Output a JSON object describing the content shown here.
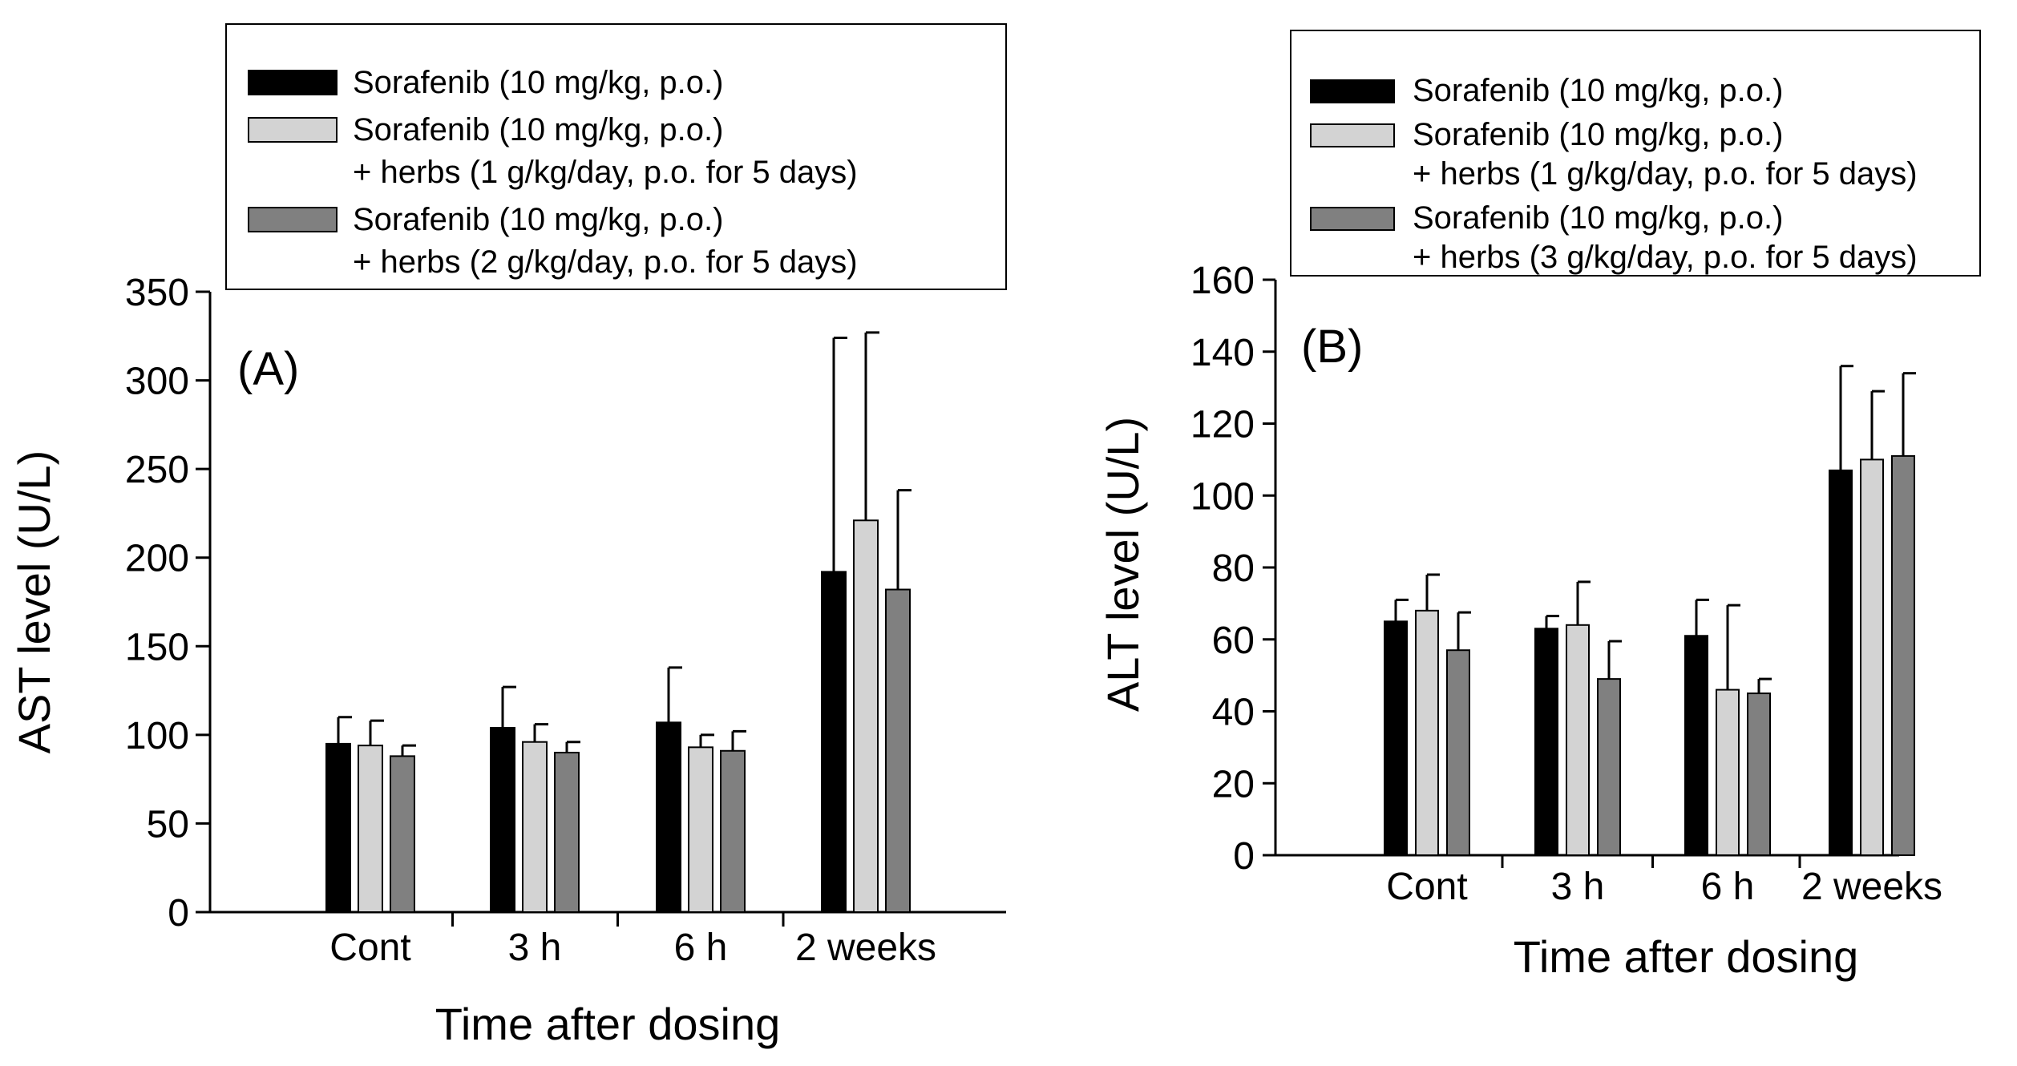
{
  "chart_data": [
    {
      "panel_label": "(A)",
      "type": "bar",
      "xlabel": "Time after dosing",
      "ylabel": "AST level (U/L)",
      "ylim": [
        0,
        350
      ],
      "yticks": [
        0,
        50,
        100,
        150,
        200,
        250,
        300,
        350
      ],
      "categories": [
        "Cont",
        "3 h",
        "6 h",
        "2 weeks"
      ],
      "series": [
        {
          "name": "Sorafenib (10 mg/kg, p.o.)",
          "color": "#000000",
          "values": [
            95,
            104,
            107,
            192
          ],
          "errors": [
            15,
            23,
            31,
            132
          ]
        },
        {
          "name": "Sorafenib (10 mg/kg, p.o.) + herbs (1 g/kg/day, p.o. for 5 days)",
          "color": "#d3d3d3",
          "values": [
            94,
            96,
            93,
            221
          ],
          "errors": [
            14,
            10,
            7,
            106
          ]
        },
        {
          "name": "Sorafenib (10 mg/kg, p.o.) + herbs (2 g/kg/day, p.o. for 5 days)",
          "color": "#808080",
          "values": [
            88,
            90,
            91,
            182
          ],
          "errors": [
            6,
            6,
            11,
            56
          ]
        }
      ],
      "legend": [
        {
          "lines": [
            "Sorafenib (10 mg/kg, p.o.)"
          ],
          "color": "#000000"
        },
        {
          "lines": [
            "Sorafenib (10 mg/kg, p.o.)",
            "+ herbs (1 g/kg/day, p.o. for 5 days)"
          ],
          "color": "#d3d3d3"
        },
        {
          "lines": [
            "Sorafenib (10 mg/kg, p.o.)",
            "+ herbs (2 g/kg/day, p.o. for 5 days)"
          ],
          "color": "#808080"
        }
      ],
      "legend_position": "top-left"
    },
    {
      "panel_label": "(B)",
      "type": "bar",
      "xlabel": "Time after dosing",
      "ylabel": "ALT level (U/L)",
      "ylim": [
        0,
        160
      ],
      "yticks": [
        0,
        20,
        40,
        60,
        80,
        100,
        120,
        140,
        160
      ],
      "categories": [
        "Cont",
        "3 h",
        "6 h",
        "2 weeks"
      ],
      "series": [
        {
          "name": "Sorafenib (10 mg/kg, p.o.)",
          "color": "#000000",
          "values": [
            65,
            63,
            61,
            107
          ],
          "errors": [
            6,
            3.5,
            10,
            29
          ]
        },
        {
          "name": "Sorafenib (10 mg/kg, p.o.) + herbs (1 g/kg/day, p.o. for 5 days)",
          "color": "#d3d3d3",
          "values": [
            68,
            64,
            46,
            110
          ],
          "errors": [
            10,
            12,
            23.5,
            19
          ]
        },
        {
          "name": "Sorafenib (10 mg/kg, p.o.) + herbs (3 g/kg/day, p.o. for 5 days)",
          "color": "#808080",
          "values": [
            57,
            49,
            45,
            111
          ],
          "errors": [
            10.5,
            10.5,
            4,
            23
          ]
        }
      ],
      "legend": [
        {
          "lines": [
            "Sorafenib (10 mg/kg, p.o.)"
          ],
          "color": "#000000"
        },
        {
          "lines": [
            "Sorafenib (10 mg/kg, p.o.)",
            "+ herbs (1 g/kg/day, p.o. for 5 days)"
          ],
          "color": "#d3d3d3"
        },
        {
          "lines": [
            "Sorafenib (10 mg/kg, p.o.)",
            "+ herbs (3 g/kg/day, p.o. for 5 days)"
          ],
          "color": "#808080"
        }
      ],
      "legend_position": "top-right"
    }
  ]
}
